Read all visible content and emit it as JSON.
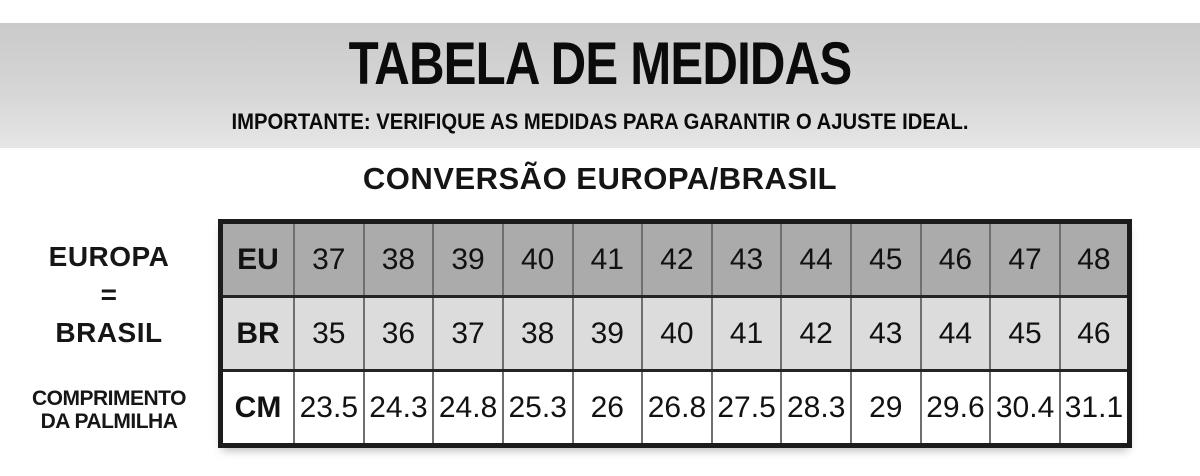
{
  "header": {
    "title": "TABELA DE MEDIDAS",
    "subtitle": "IMPORTANTE: VERIFIQUE AS MEDIDAS PARA GARANTIR O AJUSTE IDEAL."
  },
  "section": {
    "heading": "CONVERSÃO EUROPA/BRASIL"
  },
  "side_labels": {
    "europa": "EUROPA",
    "equals": "=",
    "brasil": "BRASIL",
    "insole_line1": "COMPRIMENTO",
    "insole_line2": "DA PALMILHA"
  },
  "table": {
    "rows": [
      {
        "label": "EU",
        "values": [
          "37",
          "38",
          "39",
          "40",
          "41",
          "42",
          "43",
          "44",
          "45",
          "46",
          "47",
          "48"
        ]
      },
      {
        "label": "BR",
        "values": [
          "35",
          "36",
          "37",
          "38",
          "39",
          "40",
          "41",
          "42",
          "43",
          "44",
          "45",
          "46"
        ]
      },
      {
        "label": "CM",
        "values": [
          "23.5",
          "24.3",
          "24.8",
          "25.3",
          "26",
          "26.8",
          "27.5",
          "28.3",
          "29",
          "29.6",
          "30.4",
          "31.1"
        ]
      }
    ]
  },
  "colors": {
    "band_top": "#cacaca",
    "band_bottom": "#e6e6e6",
    "row_eu_bg": "#ababab",
    "row_br_bg": "#dcdcdc",
    "row_cm_bg": "#ffffff",
    "border_outer": "#1c1c1c",
    "border_inner": "#6f6f6f",
    "text": "#111111"
  }
}
